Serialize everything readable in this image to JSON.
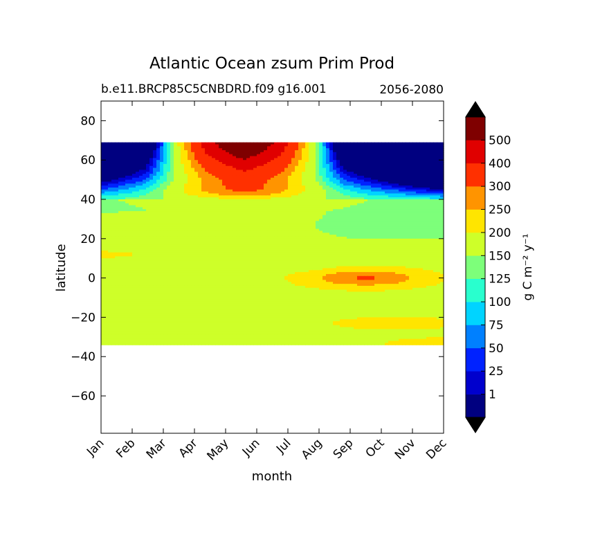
{
  "chart_data": {
    "type": "heatmap",
    "title": "Atlantic Ocean zsum Prim Prod",
    "subtitle_left": "b.e11.BRCP85C5CNBDRD.f09 g16.001",
    "subtitle_right": "2056-2080",
    "xlabel": "month",
    "ylabel": "latitude",
    "x_ticks": [
      "Jan",
      "Feb",
      "Mar",
      "Apr",
      "May",
      "Jun",
      "Jul",
      "Aug",
      "Sep",
      "Oct",
      "Nov",
      "Dec"
    ],
    "y_ticks": [
      80,
      60,
      40,
      20,
      0,
      -20,
      -40,
      -60
    ],
    "ylim": [
      -79,
      90
    ],
    "data_lat_range": [
      -34,
      69
    ],
    "colorbar": {
      "label": "g C m⁻² y⁻¹",
      "levels": [
        1,
        25,
        50,
        75,
        100,
        125,
        150,
        200,
        250,
        300,
        400,
        500
      ],
      "colors": [
        "#000080",
        "#0000cd",
        "#0022ff",
        "#0080ff",
        "#00d4ff",
        "#29ffce",
        "#7dff7a",
        "#ceff29",
        "#ffe500",
        "#ff9400",
        "#ff3000",
        "#e00000",
        "#7f0000"
      ],
      "extend": "both"
    },
    "grid": false,
    "legend": "none"
  }
}
